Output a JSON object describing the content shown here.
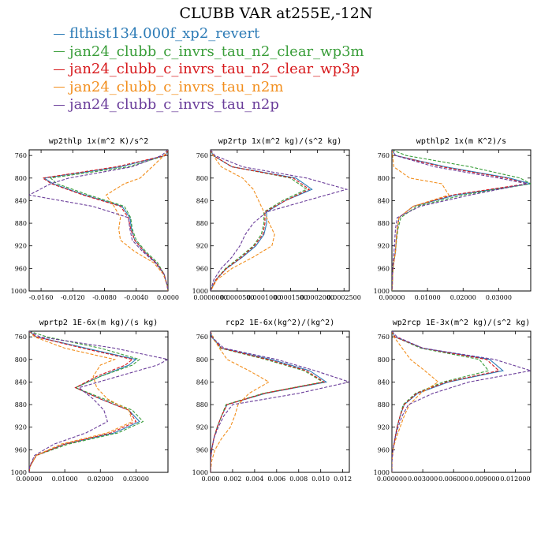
{
  "title": "CLUBB VAR at255E,-12N",
  "colors": {
    "blue": "#2c7bb6",
    "green": "#3a9e3a",
    "red": "#d7191c",
    "orange": "#f28e1c",
    "purple": "#6a3d9a"
  },
  "legend": [
    {
      "label": "flthist134.000f_xp2_revert",
      "color": "#2c7bb6",
      "dashed": false
    },
    {
      "label": "jan24_clubb_c_invrs_tau_n2_clear_wp3m",
      "color": "#3a9e3a",
      "dashed": true
    },
    {
      "label": "jan24_clubb_c_invrs_tau_n2_clear_wp3p",
      "color": "#d7191c",
      "dashed": true
    },
    {
      "label": "jan24_clubb_c_invrs_tau_n2m",
      "color": "#f28e1c",
      "dashed": true
    },
    {
      "label": "jan24_clubb_c_invrs_tau_n2p",
      "color": "#6a3d9a",
      "dashed": true
    }
  ],
  "chart_data": [
    {
      "type": "line",
      "title": "wp2thlp  1x(m^2 K)/s^2",
      "xlim": [
        -0.0175,
        0.0
      ],
      "ylim": [
        1000,
        750
      ],
      "xticks": [
        -0.016,
        -0.012,
        -0.008,
        -0.004,
        0.0
      ],
      "xtick_labels": [
        "-0.0160",
        "-0.0120",
        "-0.0080",
        "-0.0040",
        "0.0000"
      ],
      "yticks": [
        760,
        800,
        840,
        880,
        920,
        960,
        1000
      ],
      "y": [
        750,
        760,
        780,
        800,
        810,
        830,
        850,
        870,
        890,
        910,
        930,
        950,
        970,
        990,
        1000
      ],
      "series": [
        {
          "name": "flthist134.000f_xp2_revert",
          "values": [
            0,
            -0.0003,
            -0.006,
            -0.0156,
            -0.0145,
            -0.0105,
            -0.0058,
            -0.0048,
            -0.0046,
            -0.0042,
            -0.003,
            -0.0015,
            -0.0005,
            -0.0001,
            0
          ]
        },
        {
          "name": "jan24_clubb_c_invrs_tau_n2_clear_wp3m",
          "values": [
            0,
            -0.0003,
            -0.005,
            -0.0148,
            -0.014,
            -0.01,
            -0.0055,
            -0.0047,
            -0.0045,
            -0.004,
            -0.0028,
            -0.0013,
            -0.0005,
            -0.0001,
            0
          ]
        },
        {
          "name": "jan24_clubb_c_invrs_tau_n2_clear_wp3p",
          "values": [
            0,
            -0.0003,
            -0.0065,
            -0.0158,
            -0.0147,
            -0.0107,
            -0.006,
            -0.005,
            -0.0047,
            -0.0042,
            -0.003,
            -0.0015,
            -0.0005,
            -0.0001,
            0
          ]
        },
        {
          "name": "jan24_clubb_c_invrs_tau_n2m",
          "values": [
            0,
            -0.0005,
            -0.002,
            -0.0035,
            -0.0055,
            -0.0078,
            -0.0068,
            -0.006,
            -0.0062,
            -0.006,
            -0.0042,
            -0.0018,
            -0.0006,
            -0.0001,
            0
          ]
        },
        {
          "name": "jan24_clubb_c_invrs_tau_n2p",
          "values": [
            0,
            -0.0008,
            -0.0045,
            -0.0125,
            -0.0148,
            -0.0175,
            -0.0095,
            -0.005,
            -0.0048,
            -0.0045,
            -0.0032,
            -0.0016,
            -0.0005,
            -0.0001,
            0
          ]
        }
      ]
    },
    {
      "type": "line",
      "title": "wp2rtp  1x(m^2 kg)/(s^2 kg)",
      "xlim": [
        0.0,
        0.00026
      ],
      "ylim": [
        1000,
        750
      ],
      "xticks": [
        0.0,
        5e-05,
        0.0001,
        0.00015,
        0.0002,
        0.00025
      ],
      "xtick_labels": [
        "0.0000000",
        "0.0000500",
        "0.0001000",
        "0.0001500",
        "0.0002000",
        "0.0002500"
      ],
      "yticks": [
        760,
        800,
        840,
        880,
        920,
        960,
        1000
      ],
      "y": [
        750,
        760,
        780,
        800,
        820,
        840,
        860,
        880,
        900,
        920,
        940,
        960,
        980,
        1000
      ],
      "series": [
        {
          "name": "flthist134.000f_xp2_revert",
          "values": [
            0,
            5e-06,
            4e-05,
            0.00016,
            0.00019,
            0.00014,
            0.000105,
            0.000105,
            0.0001,
            8.5e-05,
            6e-05,
            3e-05,
            1e-05,
            0
          ]
        },
        {
          "name": "jan24_clubb_c_invrs_tau_n2_clear_wp3m",
          "values": [
            0,
            5e-06,
            4e-05,
            0.00015,
            0.00018,
            0.000135,
            0.0001,
            0.0001,
            9.5e-05,
            8e-05,
            5.5e-05,
            2.8e-05,
            1e-05,
            0
          ]
        },
        {
          "name": "jan24_clubb_c_invrs_tau_n2_clear_wp3p",
          "values": [
            0,
            5e-06,
            4e-05,
            0.000155,
            0.000185,
            0.00014,
            0.000102,
            0.000102,
            9.8e-05,
            8.2e-05,
            5.8e-05,
            3e-05,
            1e-05,
            0
          ]
        },
        {
          "name": "jan24_clubb_c_invrs_tau_n2m",
          "values": [
            0,
            5e-06,
            2e-05,
            6e-05,
            8e-05,
            9e-05,
            0.0001,
            0.00011,
            0.00012,
            0.000115,
            8e-05,
            4e-05,
            1.2e-05,
            0
          ]
        },
        {
          "name": "jan24_clubb_c_invrs_tau_n2p",
          "values": [
            0,
            8e-06,
            6e-05,
            0.00018,
            0.000255,
            0.00018,
            0.000105,
            8e-05,
            6.5e-05,
            5.5e-05,
            4e-05,
            2e-05,
            6e-06,
            0
          ]
        }
      ]
    },
    {
      "type": "line",
      "title": "wpthlp2  1x(m K^2)/s",
      "xlim": [
        0.0,
        0.039
      ],
      "ylim": [
        1000,
        750
      ],
      "xticks": [
        0.0,
        0.01,
        0.02,
        0.03
      ],
      "xtick_labels": [
        "0.00000",
        "0.01000",
        "0.02000",
        "0.03000"
      ],
      "yticks": [
        760,
        800,
        840,
        880,
        920,
        960,
        1000
      ],
      "y": [
        750,
        760,
        780,
        800,
        810,
        830,
        850,
        870,
        890,
        910,
        930,
        950,
        970,
        990,
        1000
      ],
      "series": [
        {
          "name": "flthist134.000f_xp2_revert",
          "values": [
            0,
            0.001,
            0.015,
            0.033,
            0.039,
            0.018,
            0.006,
            0.002,
            0.0015,
            0.0012,
            0.001,
            0.0005,
            0.0002,
            0.0001,
            0
          ]
        },
        {
          "name": "jan24_clubb_c_invrs_tau_n2_clear_wp3m",
          "values": [
            0,
            0.004,
            0.022,
            0.036,
            0.039,
            0.02,
            0.007,
            0.0025,
            0.0017,
            0.0013,
            0.001,
            0.0005,
            0.0002,
            0.0001,
            0
          ]
        },
        {
          "name": "jan24_clubb_c_invrs_tau_n2_clear_wp3p",
          "values": [
            0,
            0.001,
            0.014,
            0.032,
            0.038,
            0.017,
            0.006,
            0.002,
            0.0015,
            0.0012,
            0.001,
            0.0005,
            0.0002,
            0.0001,
            0
          ]
        },
        {
          "name": "jan24_clubb_c_invrs_tau_n2m",
          "values": [
            0,
            0.0002,
            0.0005,
            0.005,
            0.014,
            0.016,
            0.006,
            0.002,
            0.0015,
            0.0012,
            0.001,
            0.0005,
            0.0002,
            0.0001,
            0
          ]
        },
        {
          "name": "jan24_clubb_c_invrs_tau_n2p",
          "values": [
            0,
            0.001,
            0.012,
            0.03,
            0.038,
            0.022,
            0.008,
            0.0015,
            0.001,
            0.0008,
            0.0006,
            0.0003,
            0.0001,
            5e-05,
            0
          ]
        }
      ]
    },
    {
      "type": "line",
      "title": "wprtp2  1E-6x(m kg)/(s kg)",
      "xlim": [
        0.0,
        0.039
      ],
      "ylim": [
        1000,
        750
      ],
      "xticks": [
        0.0,
        0.01,
        0.02,
        0.03
      ],
      "xtick_labels": [
        "0.00000",
        "0.01000",
        "0.02000",
        "0.03000"
      ],
      "yticks": [
        760,
        800,
        840,
        880,
        920,
        960,
        1000
      ],
      "y": [
        750,
        760,
        780,
        800,
        810,
        830,
        850,
        870,
        890,
        910,
        930,
        950,
        970,
        990,
        1000
      ],
      "series": [
        {
          "name": "flthist134.000f_xp2_revert",
          "values": [
            0,
            0.002,
            0.016,
            0.03,
            0.028,
            0.02,
            0.013,
            0.02,
            0.028,
            0.031,
            0.024,
            0.01,
            0.002,
            0.0002,
            0
          ]
        },
        {
          "name": "jan24_clubb_c_invrs_tau_n2_clear_wp3m",
          "values": [
            0,
            0.005,
            0.02,
            0.031,
            0.029,
            0.02,
            0.013,
            0.021,
            0.029,
            0.032,
            0.025,
            0.011,
            0.002,
            0.0002,
            0
          ]
        },
        {
          "name": "jan24_clubb_c_invrs_tau_n2_clear_wp3p",
          "values": [
            0,
            0.002,
            0.015,
            0.029,
            0.027,
            0.019,
            0.013,
            0.02,
            0.028,
            0.03,
            0.023,
            0.01,
            0.002,
            0.0002,
            0
          ]
        },
        {
          "name": "jan24_clubb_c_invrs_tau_n2m",
          "values": [
            0,
            0.0015,
            0.01,
            0.024,
            0.02,
            0.018,
            0.019,
            0.022,
            0.028,
            0.029,
            0.022,
            0.009,
            0.002,
            0.0002,
            0
          ]
        },
        {
          "name": "jan24_clubb_c_invrs_tau_n2p",
          "values": [
            0,
            0.003,
            0.024,
            0.039,
            0.036,
            0.025,
            0.014,
            0.018,
            0.021,
            0.022,
            0.016,
            0.007,
            0.0015,
            0.0001,
            0
          ]
        }
      ]
    },
    {
      "type": "line",
      "title": "rcp2  1E-6x(kg^2)/(kg^2)",
      "xlim": [
        0.0,
        0.0126
      ],
      "ylim": [
        1000,
        750
      ],
      "xticks": [
        0.0,
        0.002,
        0.004,
        0.006,
        0.008,
        0.01,
        0.012
      ],
      "xtick_labels": [
        "0.000",
        "0.002",
        "0.004",
        "0.006",
        "0.008",
        "0.010",
        "0.012"
      ],
      "yticks": [
        760,
        800,
        840,
        880,
        920,
        960,
        1000
      ],
      "y": [
        750,
        760,
        780,
        800,
        820,
        840,
        860,
        880,
        900,
        920,
        940,
        960,
        980,
        1000
      ],
      "series": [
        {
          "name": "flthist134.000f_xp2_revert",
          "values": [
            0,
            0.0001,
            0.001,
            0.0055,
            0.009,
            0.0105,
            0.005,
            0.0015,
            0.001,
            0.0006,
            0.0003,
            0.0001,
            0,
            0
          ]
        },
        {
          "name": "jan24_clubb_c_invrs_tau_n2_clear_wp3m",
          "values": [
            0,
            0.0001,
            0.0009,
            0.005,
            0.0085,
            0.0102,
            0.0048,
            0.0014,
            0.001,
            0.0006,
            0.0003,
            0.0001,
            0,
            0
          ]
        },
        {
          "name": "jan24_clubb_c_invrs_tau_n2_clear_wp3p",
          "values": [
            0,
            0.0001,
            0.001,
            0.0052,
            0.0087,
            0.0103,
            0.0049,
            0.0015,
            0.001,
            0.0006,
            0.0003,
            0.0001,
            0,
            0
          ]
        },
        {
          "name": "jan24_clubb_c_invrs_tau_n2m",
          "values": [
            0,
            0.0002,
            0.0008,
            0.0015,
            0.0035,
            0.0053,
            0.0035,
            0.0025,
            0.0022,
            0.0018,
            0.001,
            0.0004,
            0.0001,
            0
          ]
        },
        {
          "name": "jan24_clubb_c_invrs_tau_n2p",
          "values": [
            0,
            0.0001,
            0.0012,
            0.006,
            0.0095,
            0.0126,
            0.008,
            0.002,
            0.0012,
            0.0007,
            0.0003,
            0.0001,
            0,
            0
          ]
        }
      ]
    },
    {
      "type": "line",
      "title": "wp2rcp  1E-3x(m^2 kg)/(s^2 kg)",
      "xlim": [
        0.0,
        0.0135
      ],
      "ylim": [
        1000,
        750
      ],
      "xticks": [
        0.0,
        0.003,
        0.006,
        0.009,
        0.012
      ],
      "xtick_labels": [
        "0.000000",
        "0.003000",
        "0.006000",
        "0.009000",
        "0.012000"
      ],
      "yticks": [
        760,
        800,
        840,
        880,
        920,
        960,
        1000
      ],
      "y": [
        750,
        760,
        780,
        800,
        820,
        840,
        860,
        880,
        900,
        920,
        940,
        960,
        980,
        1000
      ],
      "series": [
        {
          "name": "flthist134.000f_xp2_revert",
          "values": [
            0,
            0.0003,
            0.003,
            0.0095,
            0.0108,
            0.0055,
            0.0025,
            0.0012,
            0.0008,
            0.0005,
            0.0003,
            0.0001,
            0,
            0
          ]
        },
        {
          "name": "jan24_clubb_c_invrs_tau_n2_clear_wp3m",
          "values": [
            0,
            0.0003,
            0.0028,
            0.0085,
            0.0094,
            0.005,
            0.0023,
            0.0011,
            0.0008,
            0.0005,
            0.0003,
            0.0001,
            0,
            0
          ]
        },
        {
          "name": "jan24_clubb_c_invrs_tau_n2_clear_wp3p",
          "values": [
            0,
            0.0003,
            0.003,
            0.0092,
            0.0104,
            0.0053,
            0.0024,
            0.0012,
            0.0008,
            0.0005,
            0.0003,
            0.0001,
            0,
            0
          ]
        },
        {
          "name": "jan24_clubb_c_invrs_tau_n2m",
          "values": [
            0,
            0.0002,
            0.001,
            0.0018,
            0.0032,
            0.0045,
            0.0028,
            0.0017,
            0.0012,
            0.0008,
            0.0004,
            0.0001,
            0,
            0
          ]
        },
        {
          "name": "jan24_clubb_c_invrs_tau_n2p",
          "values": [
            0,
            0.0005,
            0.003,
            0.01,
            0.0135,
            0.0075,
            0.004,
            0.0016,
            0.001,
            0.0006,
            0.0003,
            0.0001,
            0,
            0
          ]
        }
      ]
    }
  ]
}
